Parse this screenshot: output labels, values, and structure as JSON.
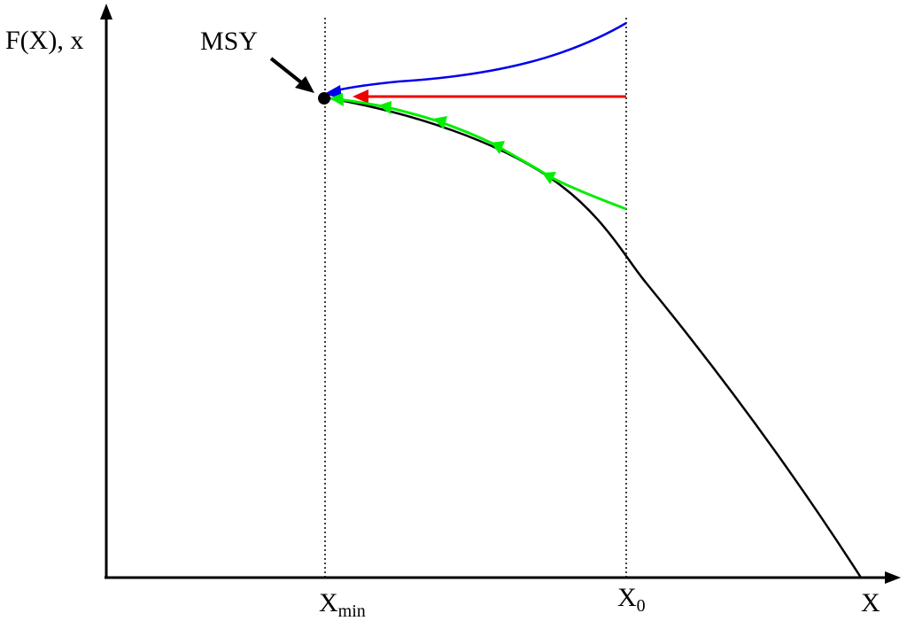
{
  "labels": {
    "y_axis": "F(X), x",
    "x_axis": "X",
    "x_min_base": "X",
    "x_min_sub": "min",
    "x0_base": "X",
    "x0_sub": "0",
    "msy": "MSY"
  },
  "colors": {
    "axis": "#000000",
    "curve": "#000000",
    "blue_path": "#0000ee",
    "red_path": "#ee0000",
    "green_path": "#00ee00",
    "msy_point": "#000000"
  },
  "icons": {
    "msy_pointer": "arrow-pointer-icon",
    "msy_point": "filled-dot-icon",
    "path_arrows": "arrowhead-icon"
  }
}
